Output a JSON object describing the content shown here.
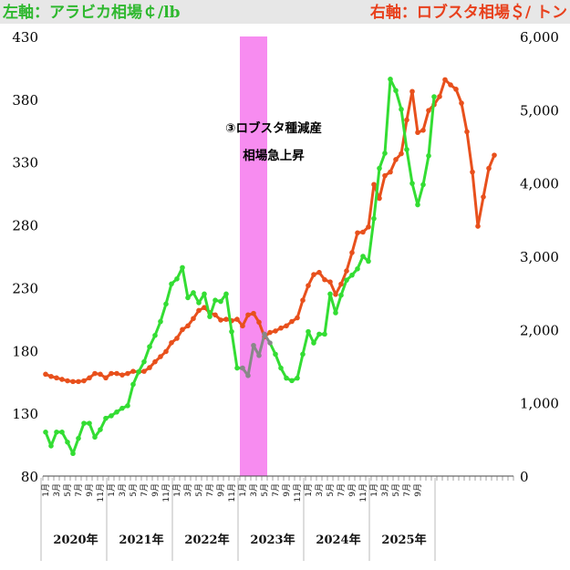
{
  "header": {
    "left_label": "左軸：アラビカ相場￠/lb",
    "right_label": "右軸：ロブスタ相場＄/ トン"
  },
  "chart_data": {
    "type": "line",
    "left_axis": {
      "label": "左軸：アラビカ相場￠/lb",
      "range": [
        80,
        430
      ],
      "ticks": [
        80,
        130,
        180,
        230,
        280,
        330,
        380,
        430
      ]
    },
    "right_axis": {
      "label": "右軸：ロブスタ相場＄/ トン",
      "range": [
        0,
        6000
      ],
      "ticks": [
        0,
        1000,
        2000,
        3000,
        4000,
        5000,
        6000
      ],
      "tick_labels": [
        "0",
        "1,000",
        "2,000",
        "3,000",
        "4,000",
        "5,000",
        "6,000"
      ]
    },
    "x_axis": {
      "month_labels": [
        "1月",
        "3月",
        "5月",
        "7月",
        "9月",
        "11月",
        "1月",
        "3月",
        "5月",
        "7月",
        "9月",
        "11月",
        "1月",
        "3月",
        "5月",
        "7月",
        "9月",
        "11月",
        "1月",
        "3月",
        "5月",
        "7月",
        "9月",
        "11月",
        "1月",
        "3月",
        "5月",
        "7月",
        "9月",
        "11月",
        "1月",
        "3月",
        "5月",
        "7月",
        "9月"
      ],
      "year_labels": [
        "2020年",
        "2021年",
        "2022年",
        "2023年",
        "2024年",
        "2025年"
      ]
    },
    "grid": false,
    "highlight": {
      "color": "#f78cf0",
      "start_month_index": 36,
      "end_month_index": 41,
      "annotation_lines": [
        "③ロブスタ種減産",
        "相場急上昇"
      ]
    },
    "series": [
      {
        "name": "右軸：ロブスタ相場＄/ トン",
        "axis": "right",
        "color": "#e8501c",
        "points": [
          [
            0,
            1390
          ],
          [
            1,
            1360
          ],
          [
            2,
            1340
          ],
          [
            3,
            1320
          ],
          [
            4,
            1300
          ],
          [
            5,
            1290
          ],
          [
            6,
            1290
          ],
          [
            7,
            1300
          ],
          [
            8,
            1340
          ],
          [
            9,
            1400
          ],
          [
            10,
            1390
          ],
          [
            11,
            1340
          ],
          [
            12,
            1400
          ],
          [
            13,
            1400
          ],
          [
            14,
            1380
          ],
          [
            15,
            1400
          ],
          [
            16,
            1430
          ],
          [
            17,
            1420
          ],
          [
            18,
            1430
          ],
          [
            19,
            1480
          ],
          [
            20,
            1560
          ],
          [
            21,
            1630
          ],
          [
            22,
            1700
          ],
          [
            23,
            1820
          ],
          [
            24,
            1880
          ],
          [
            25,
            2000
          ],
          [
            26,
            2050
          ],
          [
            27,
            2150
          ],
          [
            28,
            2260
          ],
          [
            29,
            2300
          ],
          [
            30,
            2230
          ],
          [
            31,
            2200
          ],
          [
            32,
            2130
          ],
          [
            33,
            2140
          ],
          [
            34,
            2120
          ],
          [
            35,
            2140
          ],
          [
            36,
            2050
          ],
          [
            37,
            2200
          ],
          [
            38,
            2220
          ],
          [
            39,
            2100
          ],
          [
            40,
            1900
          ],
          [
            41,
            1960
          ],
          [
            42,
            1980
          ],
          [
            43,
            2020
          ],
          [
            44,
            2050
          ],
          [
            45,
            2110
          ],
          [
            46,
            2160
          ],
          [
            47,
            2400
          ],
          [
            48,
            2600
          ],
          [
            49,
            2750
          ],
          [
            50,
            2780
          ],
          [
            51,
            2680
          ],
          [
            52,
            2650
          ],
          [
            53,
            2480
          ],
          [
            54,
            2620
          ],
          [
            55,
            2800
          ],
          [
            56,
            3050
          ],
          [
            57,
            3320
          ],
          [
            58,
            3330
          ],
          [
            59,
            3400
          ],
          [
            60,
            3980
          ],
          [
            61,
            3790
          ],
          [
            62,
            4100
          ],
          [
            63,
            4150
          ],
          [
            64,
            4320
          ],
          [
            65,
            4400
          ],
          [
            66,
            4860
          ],
          [
            67,
            5250
          ],
          [
            68,
            4690
          ],
          [
            69,
            4720
          ],
          [
            70,
            4990
          ],
          [
            71,
            5070
          ],
          [
            72,
            5180
          ],
          [
            73,
            5410
          ],
          [
            74,
            5340
          ],
          [
            75,
            5280
          ],
          [
            76,
            5090
          ],
          [
            77,
            4700
          ],
          [
            78,
            4150
          ],
          [
            79,
            3410
          ],
          [
            80,
            3810
          ],
          [
            81,
            4200
          ],
          [
            82,
            4380
          ]
        ]
      },
      {
        "name": "左軸：アラビカ相場￠/lb",
        "axis": "left",
        "color": "#33dd33",
        "highlight_color": "#888888",
        "points": [
          [
            0,
            115
          ],
          [
            1,
            104
          ],
          [
            2,
            115
          ],
          [
            3,
            115
          ],
          [
            4,
            107
          ],
          [
            5,
            98
          ],
          [
            6,
            110
          ],
          [
            7,
            122
          ],
          [
            8,
            122
          ],
          [
            9,
            111
          ],
          [
            10,
            117
          ],
          [
            11,
            126
          ],
          [
            12,
            128
          ],
          [
            13,
            131
          ],
          [
            14,
            134
          ],
          [
            15,
            136
          ],
          [
            16,
            153
          ],
          [
            17,
            163
          ],
          [
            18,
            171
          ],
          [
            19,
            183
          ],
          [
            20,
            192
          ],
          [
            21,
            203
          ],
          [
            22,
            217
          ],
          [
            23,
            233
          ],
          [
            24,
            237
          ],
          [
            25,
            246
          ],
          [
            26,
            222
          ],
          [
            27,
            226
          ],
          [
            28,
            218
          ],
          [
            29,
            225
          ],
          [
            30,
            207
          ],
          [
            31,
            220
          ],
          [
            32,
            219
          ],
          [
            33,
            225
          ],
          [
            34,
            195
          ],
          [
            35,
            166
          ],
          [
            36,
            166
          ],
          [
            37,
            160
          ],
          [
            38,
            184
          ],
          [
            39,
            176
          ],
          [
            40,
            193
          ],
          [
            41,
            186
          ],
          [
            42,
            177
          ],
          [
            43,
            166
          ],
          [
            44,
            158
          ],
          [
            45,
            156
          ],
          [
            46,
            158
          ],
          [
            47,
            177
          ],
          [
            48,
            195
          ],
          [
            49,
            186
          ],
          [
            50,
            193
          ],
          [
            51,
            193
          ],
          [
            52,
            225
          ],
          [
            53,
            210
          ],
          [
            54,
            224
          ],
          [
            55,
            236
          ],
          [
            56,
            240
          ],
          [
            57,
            245
          ],
          [
            58,
            255
          ],
          [
            59,
            251
          ],
          [
            60,
            285
          ],
          [
            61,
            325
          ],
          [
            62,
            337
          ],
          [
            63,
            396
          ],
          [
            64,
            387
          ],
          [
            65,
            372
          ],
          [
            66,
            340
          ],
          [
            67,
            313
          ],
          [
            68,
            296
          ],
          [
            69,
            312
          ],
          [
            70,
            335
          ],
          [
            71,
            382
          ]
        ]
      }
    ]
  }
}
